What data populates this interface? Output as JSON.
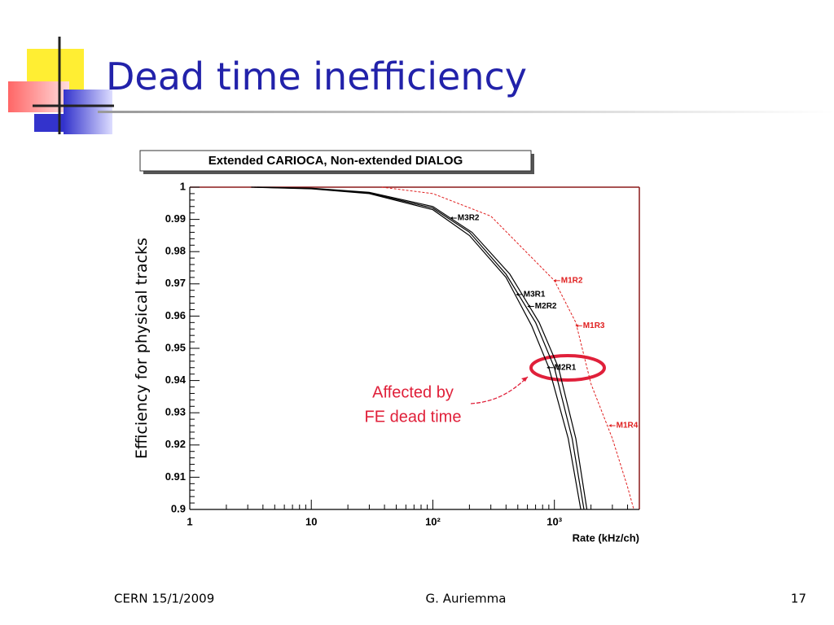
{
  "slide": {
    "title": "Dead time inefficiency",
    "footer": {
      "left": "CERN 15/1/2009",
      "center": "G. Auriemma",
      "right": "17"
    }
  },
  "chart_data": {
    "type": "line",
    "title": "Extended CARIOCA, Non-extended DIALOG",
    "x_label": "Rate (kHz/ch)",
    "y_label": "Efficiency for physical tracks",
    "xlog": true,
    "xlim": [
      1,
      5000
    ],
    "ylim": [
      0.9,
      1
    ],
    "xticks": [
      1,
      10,
      {
        "value": 100,
        "label": "10²"
      },
      {
        "value": 1000,
        "label": "10³"
      }
    ],
    "yticks": [
      0.9,
      0.91,
      0.92,
      0.93,
      0.94,
      0.95,
      0.96,
      0.97,
      0.98,
      0.99,
      1
    ],
    "series": [
      {
        "color": "#000000",
        "dashed": false,
        "x": [
          3.2,
          10,
          30,
          100,
          200,
          400,
          650,
          900,
          1300,
          1650
        ],
        "values": [
          1,
          0.9995,
          0.998,
          0.993,
          0.985,
          0.972,
          0.957,
          0.944,
          0.922,
          0.9
        ]
      },
      {
        "color": "#000000",
        "dashed": false,
        "x": [
          3.4,
          10,
          30,
          100,
          200,
          400,
          700,
          1000,
          1400,
          1750
        ],
        "values": [
          1,
          0.9996,
          0.9982,
          0.9935,
          0.986,
          0.973,
          0.958,
          0.944,
          0.922,
          0.9
        ]
      },
      {
        "color": "#000000",
        "dashed": false,
        "x": [
          3.6,
          10,
          30,
          100,
          210,
          430,
          750,
          1080,
          1500,
          1850
        ],
        "values": [
          1,
          0.9997,
          0.9984,
          0.994,
          0.986,
          0.973,
          0.958,
          0.944,
          0.922,
          0.9
        ]
      },
      {
        "color": "#e02020",
        "dashed": true,
        "x": [
          38,
          100,
          300,
          1000,
          1500,
          2000,
          3000,
          4000,
          4500
        ],
        "values": [
          1,
          0.998,
          0.991,
          0.971,
          0.958,
          0.939,
          0.922,
          0.907,
          0.9
        ]
      }
    ],
    "annotations": [
      {
        "text": "M3R2",
        "x": 139,
        "y": 0.9904,
        "color": "#000000"
      },
      {
        "text": "M1R2",
        "x": 986,
        "y": 0.971,
        "color": "#e02020"
      },
      {
        "text": "M3R1",
        "x": 485,
        "y": 0.9667,
        "color": "#000000"
      },
      {
        "text": "M2R2",
        "x": 602,
        "y": 0.963,
        "color": "#000000"
      },
      {
        "text": "M1R3",
        "x": 1496,
        "y": 0.957,
        "color": "#e02020"
      },
      {
        "text": "M2R1",
        "x": 870,
        "y": 0.944,
        "color": "#000000"
      },
      {
        "text": "M1R4",
        "x": 2810,
        "y": 0.926,
        "color": "#e02020"
      }
    ],
    "callout": [
      "Affected by",
      "FE dead time"
    ]
  }
}
